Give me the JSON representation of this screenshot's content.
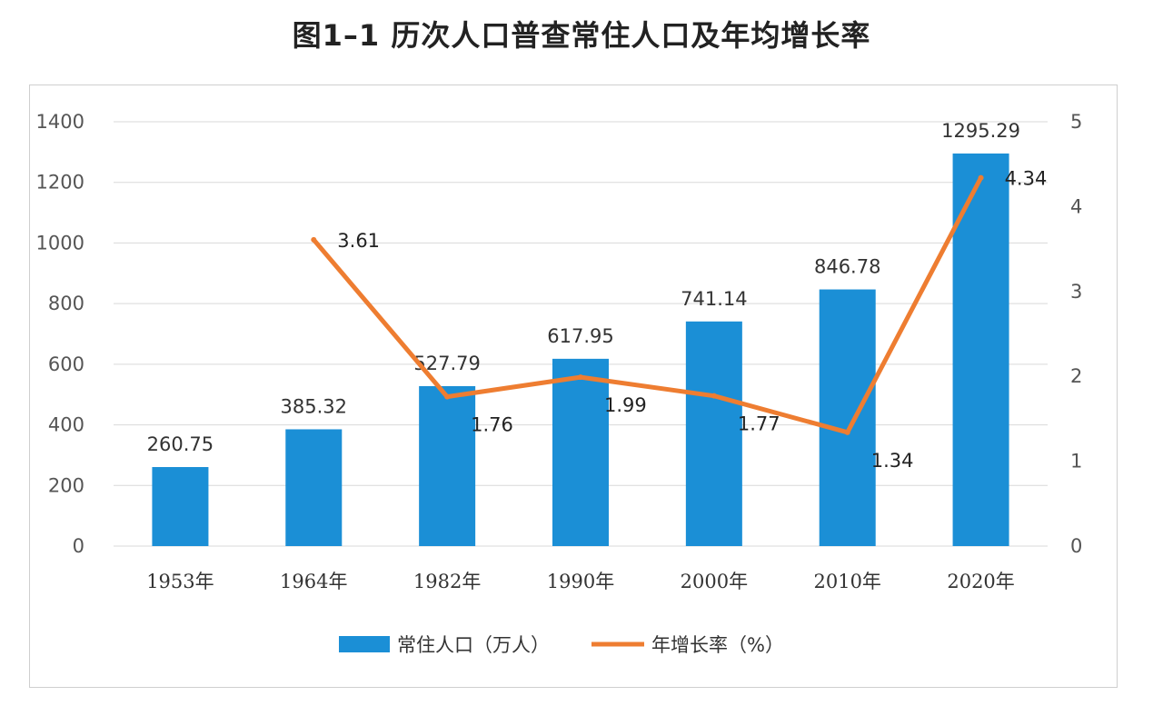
{
  "title": "图1–1   历次人口普查常住人口及年均增长率",
  "chart_data": {
    "type": "bar",
    "categories": [
      "1953年",
      "1964年",
      "1982年",
      "1990年",
      "2000年",
      "2010年",
      "2020年"
    ],
    "series": [
      {
        "name": "常住人口（万人）",
        "type": "bar",
        "axis": "left",
        "color": "#1b8fd6",
        "values": [
          260.75,
          385.32,
          527.79,
          617.95,
          741.14,
          846.78,
          1295.29
        ],
        "labels": [
          "260.75",
          "385.32",
          "527.79",
          "617.95",
          "741.14",
          "846.78",
          "1295.29"
        ]
      },
      {
        "name": "年增长率（%）",
        "type": "line",
        "axis": "right",
        "color": "#ee7d31",
        "values": [
          null,
          3.61,
          1.76,
          1.99,
          1.77,
          1.34,
          4.34
        ],
        "labels": [
          "",
          "3.61",
          "1.76",
          "1.99",
          "1.77",
          "1.34",
          "4.34"
        ]
      }
    ],
    "y_left": {
      "min": 0,
      "max": 1400,
      "ticks": [
        "0",
        "200",
        "400",
        "600",
        "800",
        "1000",
        "1200",
        "1400"
      ]
    },
    "y_right": {
      "min": 0,
      "max": 5,
      "ticks": [
        "0",
        "1",
        "2",
        "3",
        "4",
        "5"
      ]
    },
    "grid": true,
    "legend": "bottom"
  }
}
